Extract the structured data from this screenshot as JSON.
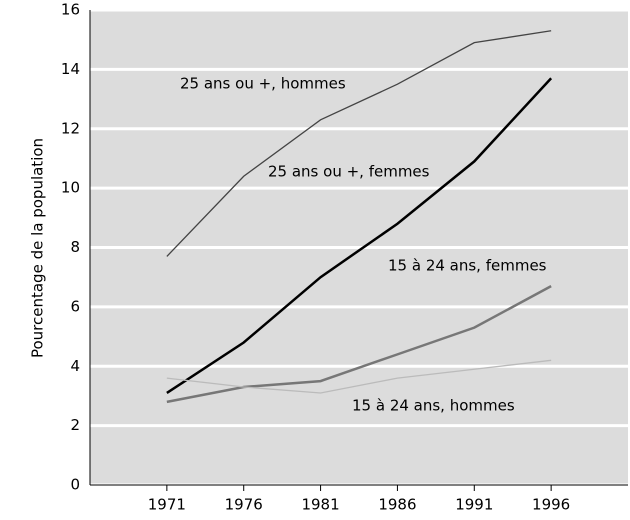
{
  "chart_data": {
    "type": "line",
    "ylabel": "Pourcentage de la population",
    "x": [
      1971,
      1976,
      1981,
      1986,
      1991,
      1996
    ],
    "xlim": [
      1966,
      2001
    ],
    "xticks": [
      1971,
      1976,
      1981,
      1986,
      1991,
      1996
    ],
    "ylim": [
      0,
      16
    ],
    "yticks": [
      0,
      2,
      4,
      6,
      8,
      10,
      12,
      14,
      16
    ],
    "grid": true,
    "series": [
      {
        "name": "25 ans ou +, hommes",
        "color": "#444444",
        "values": [
          7.7,
          10.4,
          12.3,
          13.5,
          14.9,
          15.3
        ]
      },
      {
        "name": "25 ans ou +, femmes",
        "color": "#000000",
        "values": [
          3.1,
          4.8,
          7.0,
          8.8,
          10.9,
          13.7
        ]
      },
      {
        "name": "15 à 24 ans, femmes",
        "color": "#777777",
        "values": [
          2.8,
          3.3,
          3.5,
          4.4,
          5.3,
          6.7
        ]
      },
      {
        "name": "15 à 24 ans, hommes",
        "color": "#bbbbbb",
        "values": [
          3.6,
          3.3,
          3.1,
          3.6,
          3.9,
          4.2
        ]
      }
    ]
  }
}
